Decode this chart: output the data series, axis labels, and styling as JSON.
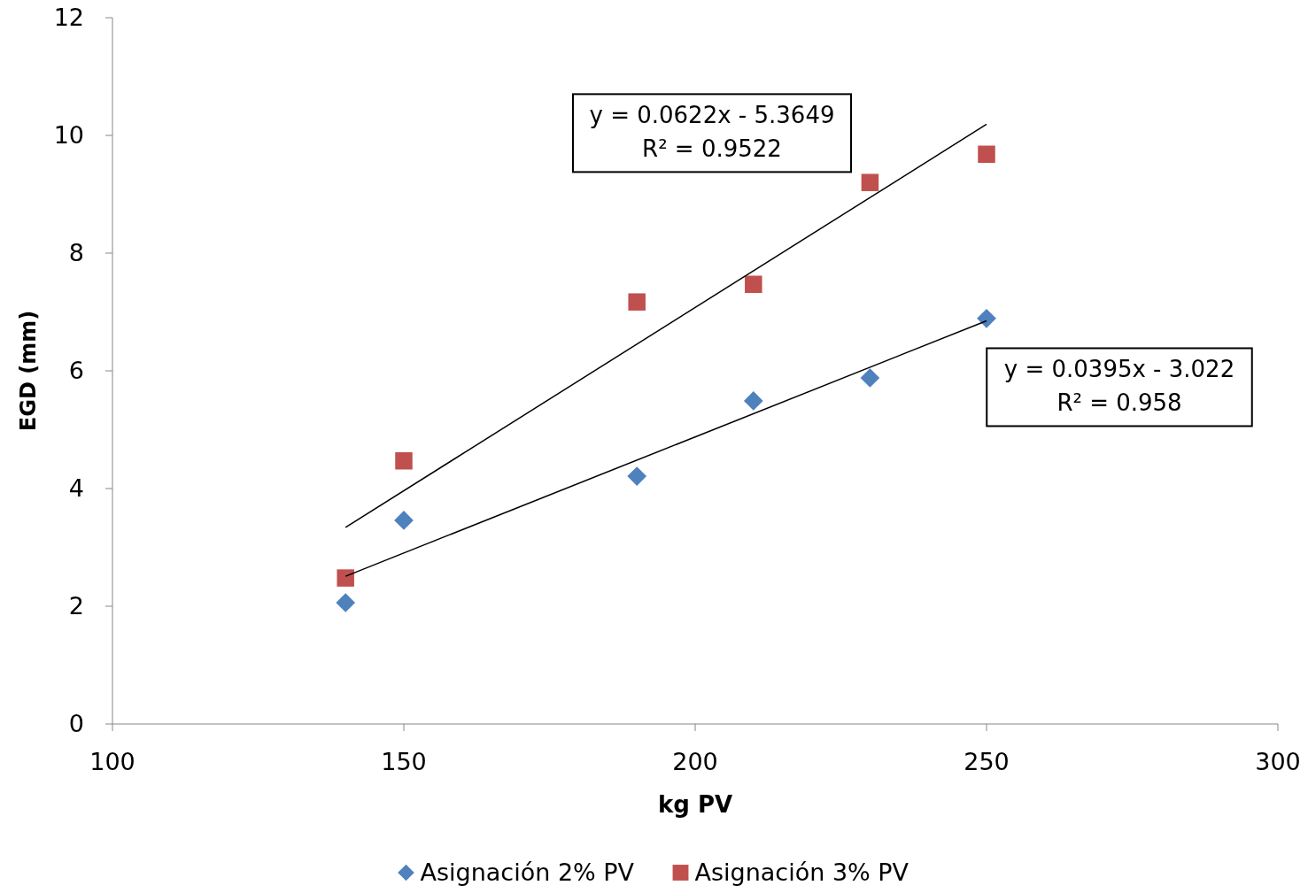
{
  "chart_data": {
    "type": "scatter",
    "xlabel": "kg PV",
    "ylabel": "EGD (mm)",
    "xlim": [
      100,
      300
    ],
    "xticks": [
      100,
      150,
      200,
      250,
      300
    ],
    "ylim": [
      0,
      12
    ],
    "yticks": [
      0,
      2,
      4,
      6,
      8,
      10,
      12
    ],
    "grid": false,
    "legend": "bottom",
    "series": [
      {
        "name": "Asignación 2% PV",
        "color": "#4f81bd",
        "marker": "diamond",
        "x": [
          140,
          150,
          190,
          210,
          230,
          250
        ],
        "values": [
          2.06,
          3.46,
          4.21,
          5.49,
          5.88,
          6.89
        ]
      },
      {
        "name": "Asignación 3% PV",
        "color": "#c0504d",
        "marker": "square",
        "x": [
          140,
          150,
          190,
          210,
          230,
          250
        ],
        "values": [
          2.48,
          4.47,
          7.17,
          7.47,
          9.2,
          9.68
        ]
      },
      {
        "type": "line",
        "color": "#000000",
        "x": [
          140,
          250
        ],
        "values": [
          3.34,
          10.19
        ]
      },
      {
        "type": "line",
        "color": "#000000",
        "x": [
          140,
          250
        ],
        "values": [
          2.51,
          6.85
        ]
      }
    ],
    "annotations": [
      "y = 0.0622x - 5.3649\nR² = 0.9522",
      "y = 0.0395x - 3.022\nR² = 0.958"
    ]
  }
}
